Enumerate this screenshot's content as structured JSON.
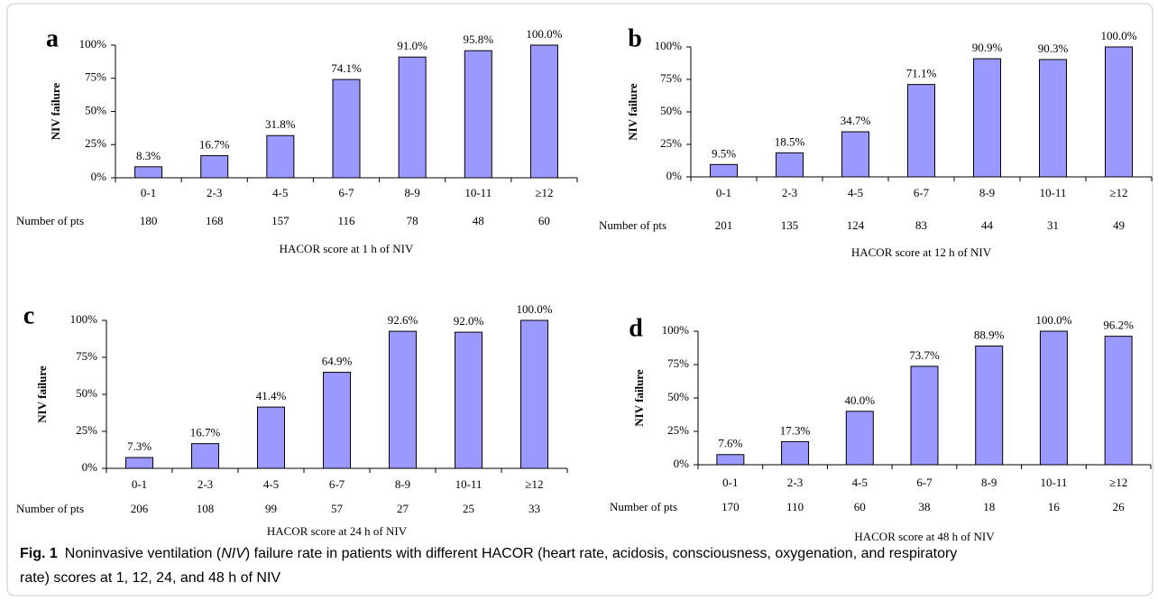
{
  "chart_data": [
    {
      "type": "bar",
      "panel": "a",
      "y_label": "NIV failure",
      "x_label": "HACOR score at 1 h of NIV",
      "pts_label": "Number of pts",
      "categories": [
        "0-1",
        "2-3",
        "4-5",
        "6-7",
        "8-9",
        "10-11",
        "≥12"
      ],
      "values": [
        8.3,
        16.7,
        31.8,
        74.1,
        91.0,
        95.8,
        100.0
      ],
      "value_labels": [
        "8.3%",
        "16.7%",
        "31.8%",
        "74.1%",
        "91.0%",
        "95.8%",
        "100.0%"
      ],
      "pts": [
        180,
        168,
        157,
        116,
        78,
        48,
        60
      ],
      "color": "#9999ff",
      "ylim": [
        0,
        100
      ],
      "yticks": [
        {
          "value": 0,
          "label": "0%"
        },
        {
          "value": 25,
          "label": "25%"
        },
        {
          "value": 50,
          "label": "50%"
        },
        {
          "value": 75,
          "label": "75%"
        },
        {
          "value": 100,
          "label": "100%"
        }
      ]
    },
    {
      "type": "bar",
      "panel": "b",
      "y_label": "NIV failure",
      "x_label": "HACOR score at 12 h of NIV",
      "pts_label": "Number of pts",
      "categories": [
        "0-1",
        "2-3",
        "4-5",
        "6-7",
        "8-9",
        "10-11",
        "≥12"
      ],
      "values": [
        9.5,
        18.5,
        34.7,
        71.1,
        90.9,
        90.3,
        100.0
      ],
      "value_labels": [
        "9.5%",
        "18.5%",
        "34.7%",
        "71.1%",
        "90.9%",
        "90.3%",
        "100.0%"
      ],
      "pts": [
        201,
        135,
        124,
        83,
        44,
        31,
        49
      ],
      "color": "#9999ff",
      "ylim": [
        0,
        100
      ],
      "yticks": [
        {
          "value": 0,
          "label": "0%"
        },
        {
          "value": 25,
          "label": "25%"
        },
        {
          "value": 50,
          "label": "50%"
        },
        {
          "value": 75,
          "label": "75%"
        },
        {
          "value": 100,
          "label": "100%"
        }
      ]
    },
    {
      "type": "bar",
      "panel": "c",
      "y_label": "NIV failure",
      "x_label": "HACOR score at 24 h of NIV",
      "pts_label": "Number of pts",
      "categories": [
        "0-1",
        "2-3",
        "4-5",
        "6-7",
        "8-9",
        "10-11",
        "≥12"
      ],
      "values": [
        7.3,
        16.7,
        41.4,
        64.9,
        92.6,
        92.0,
        100.0
      ],
      "value_labels": [
        "7.3%",
        "16.7%",
        "41.4%",
        "64.9%",
        "92.6%",
        "92.0%",
        "100.0%"
      ],
      "pts": [
        206,
        108,
        99,
        57,
        27,
        25,
        33
      ],
      "color": "#9999ff",
      "ylim": [
        0,
        100
      ],
      "yticks": [
        {
          "value": 0,
          "label": "0%"
        },
        {
          "value": 25,
          "label": "25%"
        },
        {
          "value": 50,
          "label": "50%"
        },
        {
          "value": 75,
          "label": "75%"
        },
        {
          "value": 100,
          "label": "100%"
        }
      ]
    },
    {
      "type": "bar",
      "panel": "d",
      "y_label": "NIV failure",
      "x_label": "HACOR score at 48 h of NIV",
      "pts_label": "Number of pts",
      "categories": [
        "0-1",
        "2-3",
        "4-5",
        "6-7",
        "8-9",
        "10-11",
        "≥12"
      ],
      "values": [
        7.6,
        17.3,
        40.0,
        73.7,
        88.9,
        100.0,
        96.2
      ],
      "value_labels": [
        "7.6%",
        "17.3%",
        "40.0%",
        "73.7%",
        "88.9%",
        "100.0%",
        "96.2%"
      ],
      "pts": [
        170,
        110,
        60,
        38,
        18,
        16,
        26
      ],
      "color": "#9999ff",
      "ylim": [
        0,
        100
      ],
      "yticks": [
        {
          "value": 0,
          "label": "0%"
        },
        {
          "value": 25,
          "label": "25%"
        },
        {
          "value": 50,
          "label": "50%"
        },
        {
          "value": 75,
          "label": "75%"
        },
        {
          "value": 100,
          "label": "100%"
        }
      ]
    }
  ],
  "caption": {
    "label": "Fig. 1",
    "parts": [
      "Noninvasive ventilation (",
      "NIV",
      ") failure rate in patients with different HACOR (heart rate, acidosis, consciousness, oxygenation, and respiratory",
      "rate) scores at 1, 12, 24, and 48 h of NIV"
    ]
  }
}
